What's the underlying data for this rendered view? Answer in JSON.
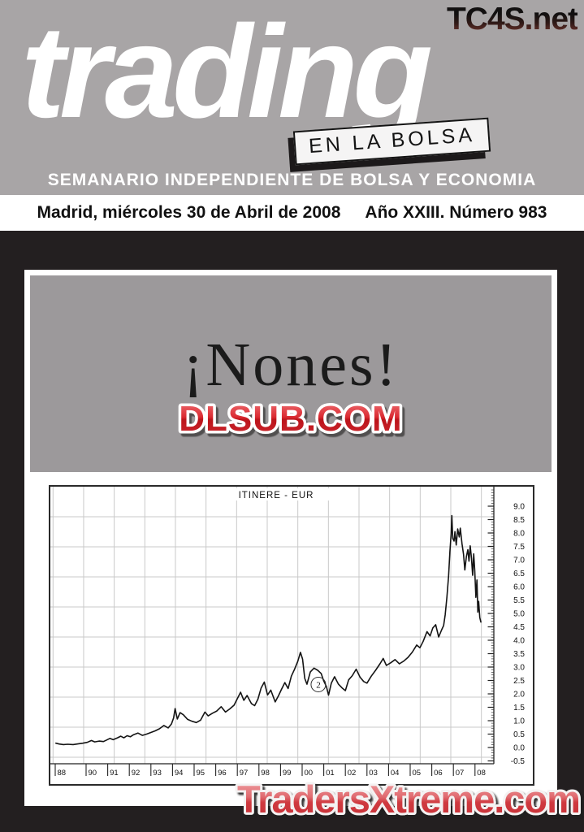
{
  "masthead": {
    "site": "TC4S.net",
    "title": "trading",
    "banner": "EN LA BOLSA",
    "tagline": "SEMANARIO INDEPENDIENTE DE BOLSA Y ECONOMIA"
  },
  "date_strip": {
    "date_line": "Madrid, miércoles 30 de Abril de 2008",
    "issue_line": "Año XXIII. Número 983"
  },
  "feature": {
    "headline": "¡Nones!",
    "logo": "DLSUB.COM"
  },
  "footer": {
    "site": "TradersXtreme.com"
  },
  "colors": {
    "header_gray": "#a8a5a6",
    "box_gray": "#9c999b",
    "page_black": "#231f20",
    "logo_red": "#c81e24",
    "footer_red": "#d4464c",
    "chart_grid": "#c9c9c9",
    "chart_line": "#141414"
  },
  "chart_data": {
    "type": "line",
    "title": "ITINERE - EUR",
    "xlabel": "",
    "ylabel": "",
    "ylim": [
      -0.5,
      9.0
    ],
    "y_tick_step": 0.5,
    "y_tick_labels": [
      "9.0",
      "8.5",
      "8.0",
      "7.5",
      "7.0",
      "6.5",
      "6.0",
      "5.5",
      "5.0",
      "4.5",
      "4.0",
      "3.5",
      "3.0",
      "2.5",
      "2.0",
      "1.5",
      "1.0",
      "0.5",
      "0.0",
      "-0.5"
    ],
    "x_tick_labels": [
      "88",
      "90",
      "91",
      "92",
      "93",
      "94",
      "95",
      "96",
      "97",
      "98",
      "99",
      "00",
      "01",
      "02",
      "03",
      "04",
      "05",
      "06",
      "07",
      "08"
    ],
    "x_tick_years": [
      1988,
      1990,
      1991,
      1992,
      1993,
      1994,
      1995,
      1996,
      1997,
      1998,
      1999,
      2000,
      2001,
      2002,
      2003,
      2004,
      2005,
      2006,
      2007,
      2008
    ],
    "grid": "square-graph-paper",
    "legend": "none",
    "annotations": [
      {
        "label": "2",
        "year": 2000.75,
        "value": 2.35
      }
    ],
    "series": [
      {
        "name": "ITINERE - EUR",
        "points": [
          [
            1988.6,
            0.16
          ],
          [
            1988.75,
            0.13
          ],
          [
            1988.95,
            0.11
          ],
          [
            1989.15,
            0.12
          ],
          [
            1989.4,
            0.11
          ],
          [
            1989.65,
            0.14
          ],
          [
            1989.85,
            0.16
          ],
          [
            1990.05,
            0.19
          ],
          [
            1990.25,
            0.26
          ],
          [
            1990.4,
            0.21
          ],
          [
            1990.6,
            0.24
          ],
          [
            1990.8,
            0.22
          ],
          [
            1990.95,
            0.28
          ],
          [
            1991.1,
            0.34
          ],
          [
            1991.25,
            0.29
          ],
          [
            1991.45,
            0.36
          ],
          [
            1991.6,
            0.42
          ],
          [
            1991.75,
            0.36
          ],
          [
            1991.9,
            0.44
          ],
          [
            1992.05,
            0.4
          ],
          [
            1992.2,
            0.48
          ],
          [
            1992.4,
            0.54
          ],
          [
            1992.6,
            0.45
          ],
          [
            1992.8,
            0.5
          ],
          [
            1993.0,
            0.56
          ],
          [
            1993.2,
            0.62
          ],
          [
            1993.4,
            0.7
          ],
          [
            1993.6,
            0.82
          ],
          [
            1993.8,
            0.73
          ],
          [
            1993.95,
            0.88
          ],
          [
            1994.05,
            1.1
          ],
          [
            1994.12,
            1.45
          ],
          [
            1994.22,
            1.06
          ],
          [
            1994.35,
            1.3
          ],
          [
            1994.5,
            1.22
          ],
          [
            1994.7,
            1.05
          ],
          [
            1994.9,
            0.98
          ],
          [
            1995.1,
            0.93
          ],
          [
            1995.3,
            1.02
          ],
          [
            1995.5,
            1.32
          ],
          [
            1995.65,
            1.18
          ],
          [
            1995.85,
            1.28
          ],
          [
            1996.05,
            1.36
          ],
          [
            1996.25,
            1.52
          ],
          [
            1996.45,
            1.32
          ],
          [
            1996.65,
            1.44
          ],
          [
            1996.85,
            1.58
          ],
          [
            1997.0,
            1.82
          ],
          [
            1997.15,
            2.06
          ],
          [
            1997.3,
            1.76
          ],
          [
            1997.45,
            1.94
          ],
          [
            1997.65,
            1.64
          ],
          [
            1997.8,
            1.56
          ],
          [
            1997.95,
            1.8
          ],
          [
            1998.1,
            2.22
          ],
          [
            1998.25,
            2.44
          ],
          [
            1998.4,
            1.96
          ],
          [
            1998.55,
            2.14
          ],
          [
            1998.75,
            1.7
          ],
          [
            1998.9,
            1.92
          ],
          [
            1999.05,
            2.18
          ],
          [
            1999.2,
            2.42
          ],
          [
            1999.35,
            2.2
          ],
          [
            1999.5,
            2.66
          ],
          [
            1999.65,
            2.92
          ],
          [
            1999.8,
            3.22
          ],
          [
            1999.92,
            3.55
          ],
          [
            2000.02,
            3.3
          ],
          [
            2000.12,
            2.58
          ],
          [
            2000.22,
            2.36
          ],
          [
            2000.38,
            2.82
          ],
          [
            2000.55,
            2.96
          ],
          [
            2000.72,
            2.88
          ],
          [
            2000.88,
            2.76
          ],
          [
            2001.0,
            2.48
          ],
          [
            2001.12,
            2.28
          ],
          [
            2001.22,
            1.95
          ],
          [
            2001.35,
            2.4
          ],
          [
            2001.5,
            2.64
          ],
          [
            2001.68,
            2.36
          ],
          [
            2001.85,
            2.22
          ],
          [
            2002.0,
            2.12
          ],
          [
            2002.15,
            2.52
          ],
          [
            2002.32,
            2.68
          ],
          [
            2002.5,
            2.92
          ],
          [
            2002.68,
            2.62
          ],
          [
            2002.85,
            2.46
          ],
          [
            2003.0,
            2.4
          ],
          [
            2003.2,
            2.66
          ],
          [
            2003.4,
            2.88
          ],
          [
            2003.6,
            3.12
          ],
          [
            2003.75,
            3.32
          ],
          [
            2003.9,
            3.06
          ],
          [
            2004.1,
            3.16
          ],
          [
            2004.3,
            3.28
          ],
          [
            2004.5,
            3.12
          ],
          [
            2004.7,
            3.22
          ],
          [
            2004.9,
            3.36
          ],
          [
            2005.1,
            3.56
          ],
          [
            2005.3,
            3.82
          ],
          [
            2005.45,
            3.72
          ],
          [
            2005.6,
            3.96
          ],
          [
            2005.78,
            4.32
          ],
          [
            2005.92,
            4.16
          ],
          [
            2006.05,
            4.46
          ],
          [
            2006.18,
            4.58
          ],
          [
            2006.32,
            4.12
          ],
          [
            2006.45,
            4.38
          ],
          [
            2006.55,
            4.55
          ],
          [
            2006.62,
            4.95
          ],
          [
            2006.7,
            5.6
          ],
          [
            2006.78,
            6.4
          ],
          [
            2006.84,
            7.3
          ],
          [
            2006.9,
            8.0
          ],
          [
            2006.93,
            8.65
          ],
          [
            2006.97,
            7.8
          ],
          [
            2007.03,
            7.7
          ],
          [
            2007.07,
            8.05
          ],
          [
            2007.13,
            7.55
          ],
          [
            2007.2,
            8.15
          ],
          [
            2007.27,
            7.85
          ],
          [
            2007.32,
            8.18
          ],
          [
            2007.4,
            7.6
          ],
          [
            2007.47,
            7.2
          ],
          [
            2007.53,
            6.62
          ],
          [
            2007.6,
            7.12
          ],
          [
            2007.67,
            7.38
          ],
          [
            2007.72,
            6.95
          ],
          [
            2007.78,
            7.52
          ],
          [
            2007.84,
            7.05
          ],
          [
            2007.89,
            6.42
          ],
          [
            2007.94,
            7.22
          ],
          [
            2007.99,
            6.6
          ],
          [
            2008.04,
            5.6
          ],
          [
            2008.09,
            6.25
          ],
          [
            2008.13,
            5.05
          ],
          [
            2008.17,
            5.45
          ],
          [
            2008.22,
            4.85
          ],
          [
            2008.27,
            4.68
          ]
        ]
      }
    ]
  }
}
